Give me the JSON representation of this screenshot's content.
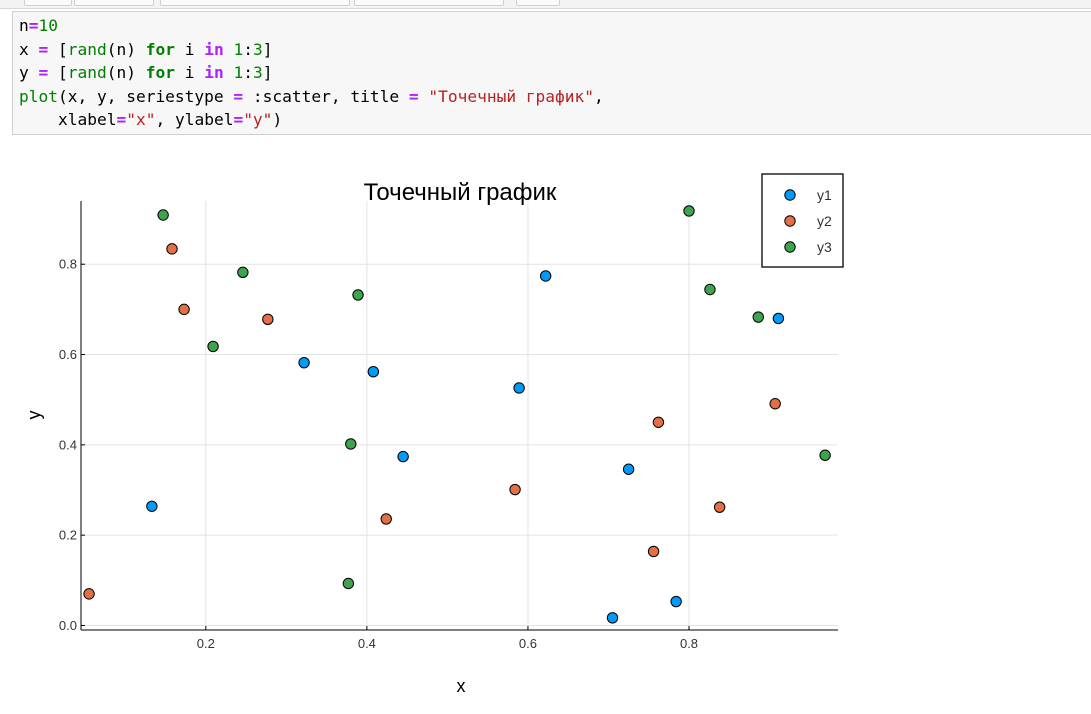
{
  "code": {
    "lines": [
      [
        {
          "t": "n",
          "c": ""
        },
        {
          "t": "=",
          "c": "op"
        },
        {
          "t": "10",
          "c": "num"
        }
      ],
      [
        {
          "t": "x ",
          "c": ""
        },
        {
          "t": "=",
          "c": "op"
        },
        {
          "t": " [",
          "c": ""
        },
        {
          "t": "rand",
          "c": "fn"
        },
        {
          "t": "(n) ",
          "c": ""
        },
        {
          "t": "for",
          "c": "kw"
        },
        {
          "t": " i ",
          "c": ""
        },
        {
          "t": "in",
          "c": "op"
        },
        {
          "t": " ",
          "c": ""
        },
        {
          "t": "1",
          "c": "num"
        },
        {
          "t": ":",
          "c": ""
        },
        {
          "t": "3",
          "c": "num"
        },
        {
          "t": "]",
          "c": ""
        }
      ],
      [
        {
          "t": "y ",
          "c": ""
        },
        {
          "t": "=",
          "c": "op"
        },
        {
          "t": " [",
          "c": ""
        },
        {
          "t": "rand",
          "c": "fn"
        },
        {
          "t": "(n) ",
          "c": ""
        },
        {
          "t": "for",
          "c": "kw"
        },
        {
          "t": " i ",
          "c": ""
        },
        {
          "t": "in",
          "c": "op"
        },
        {
          "t": " ",
          "c": ""
        },
        {
          "t": "1",
          "c": "num"
        },
        {
          "t": ":",
          "c": ""
        },
        {
          "t": "3",
          "c": "num"
        },
        {
          "t": "]",
          "c": ""
        }
      ],
      [
        {
          "t": "plot",
          "c": "fn"
        },
        {
          "t": "(x, y, seriestype ",
          "c": ""
        },
        {
          "t": "=",
          "c": "op"
        },
        {
          "t": " :scatter, title ",
          "c": ""
        },
        {
          "t": "=",
          "c": "op"
        },
        {
          "t": " ",
          "c": ""
        },
        {
          "t": "\"Точечный график\"",
          "c": "str"
        },
        {
          "t": ",",
          "c": ""
        }
      ],
      [
        {
          "t": "    xlabel",
          "c": ""
        },
        {
          "t": "=",
          "c": "op"
        },
        {
          "t": "\"x\"",
          "c": "str"
        },
        {
          "t": ", ylabel",
          "c": ""
        },
        {
          "t": "=",
          "c": "op"
        },
        {
          "t": "\"y\"",
          "c": "str"
        },
        {
          "t": ")",
          "c": ""
        }
      ]
    ]
  },
  "chart_data": {
    "type": "scatter",
    "title": "Точечный график",
    "xlabel": "x",
    "ylabel": "y",
    "xlim": [
      0.045,
      0.985
    ],
    "ylim": [
      -0.01,
      0.94
    ],
    "xticks": [
      0.2,
      0.4,
      0.6,
      0.8
    ],
    "yticks": [
      0.0,
      0.2,
      0.4,
      0.6,
      0.8
    ],
    "tick_labels_x": [
      "0.2",
      "0.4",
      "0.6",
      "0.8"
    ],
    "tick_labels_y": [
      "0.0",
      "0.2",
      "0.4",
      "0.6",
      "0.8"
    ],
    "grid": true,
    "legend_position": "top-right",
    "series": [
      {
        "name": "y1",
        "color": "#009af9",
        "x": [
          0.133,
          0.322,
          0.408,
          0.445,
          0.589,
          0.622,
          0.705,
          0.725,
          0.784,
          0.911
        ],
        "y": [
          0.264,
          0.582,
          0.562,
          0.374,
          0.526,
          0.774,
          0.017,
          0.346,
          0.053,
          0.68
        ]
      },
      {
        "name": "y2",
        "color": "#e26f46",
        "x": [
          0.055,
          0.158,
          0.173,
          0.277,
          0.424,
          0.584,
          0.756,
          0.762,
          0.838,
          0.907
        ],
        "y": [
          0.07,
          0.834,
          0.7,
          0.678,
          0.236,
          0.301,
          0.164,
          0.45,
          0.262,
          0.491
        ]
      },
      {
        "name": "y3",
        "color": "#3da44d",
        "x": [
          0.147,
          0.209,
          0.246,
          0.377,
          0.38,
          0.389,
          0.8,
          0.826,
          0.886,
          0.969
        ],
        "y": [
          0.909,
          0.618,
          0.782,
          0.093,
          0.402,
          0.732,
          0.918,
          0.744,
          0.683,
          0.377
        ]
      }
    ]
  }
}
